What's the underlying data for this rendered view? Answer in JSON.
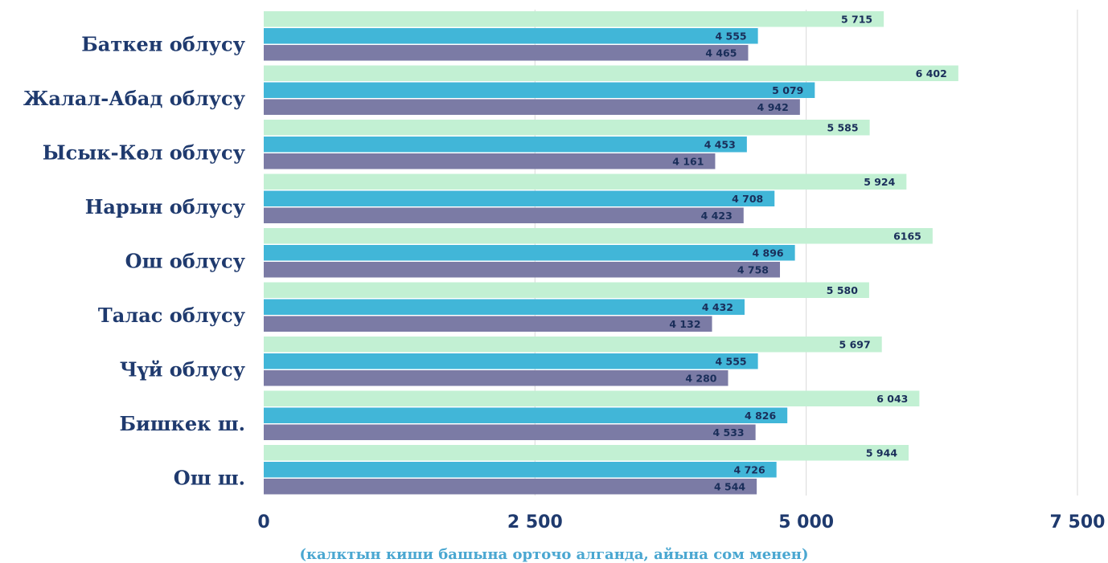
{
  "chart_data": {
    "type": "bar",
    "orientation": "horizontal",
    "categories": [
      "Баткен облусу",
      "Жалал-Абад облусу",
      "Ысык-Көл облусу",
      "Нарын облусу",
      "Ош облусу",
      "Талас облусу",
      "Чүй облусу",
      "Бишкек ш.",
      "Ош ш."
    ],
    "series": [
      {
        "values": [
          5715,
          6402,
          5585,
          5924,
          6165,
          5580,
          5697,
          6043,
          5944
        ],
        "labels": [
          "5 715",
          "6 402",
          "5 585",
          "5 924",
          "6165",
          "5 580",
          "5 697",
          "6 043",
          "5 944"
        ],
        "color": "#c2f0d3"
      },
      {
        "values": [
          4555,
          5079,
          4453,
          4708,
          4896,
          4432,
          4555,
          4826,
          4726
        ],
        "labels": [
          "4 555",
          "5 079",
          "4 453",
          "4 708",
          "4 896",
          "4 432",
          "4 555",
          "4 826",
          "4 726"
        ],
        "color": "#41b6d8"
      },
      {
        "values": [
          4465,
          4942,
          4161,
          4423,
          4758,
          4132,
          4280,
          4533,
          4544
        ],
        "labels": [
          "4 465",
          "4 942",
          "4 161",
          "4 423",
          "4 758",
          "4 132",
          "4 280",
          "4 533",
          "4 544"
        ],
        "color": "#7b7ba5"
      }
    ],
    "xlim": [
      0,
      7500
    ],
    "xticks": [
      0,
      2500,
      5000,
      7500
    ],
    "xtick_labels": [
      "0",
      "2 500",
      "5 000",
      "7 500"
    ],
    "xlabel": "(калктын киши башына орточо  алганда, айына сом менен)",
    "ylabel": "",
    "title": "",
    "grid": true,
    "legend": "none"
  }
}
